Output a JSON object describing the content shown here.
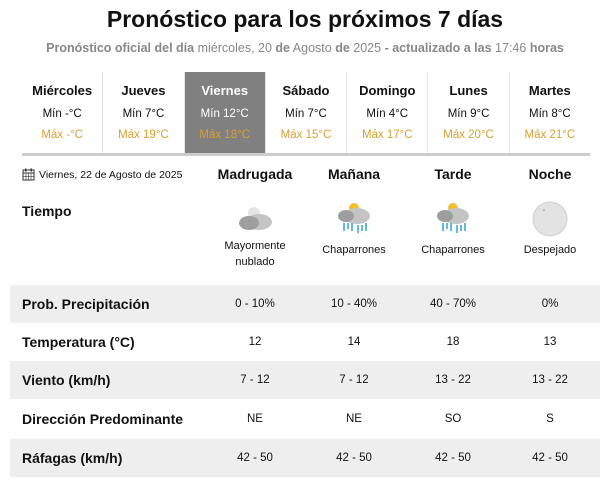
{
  "header": {
    "title": "Pronóstico para los próximos 7 días",
    "subtitle": {
      "p1": "Pronóstico oficial del día",
      "date": "miércoles, 20",
      "p2": "de",
      "month": "Agosto",
      "p3": "de",
      "year": "2025",
      "p4": "- actualizado a las",
      "time": "17:46",
      "p5": "horas"
    }
  },
  "days": [
    {
      "name": "Miércoles",
      "min": "Mín -°C",
      "max": "Máx -°C"
    },
    {
      "name": "Jueves",
      "min": "Mín 7°C",
      "max": "Máx 19°C"
    },
    {
      "name": "Viernes",
      "min": "Mín 12°C",
      "max": "Máx 18°C",
      "selected": true
    },
    {
      "name": "Sábado",
      "min": "Mín 7°C",
      "max": "Máx 15°C"
    },
    {
      "name": "Domingo",
      "min": "Mín 4°C",
      "max": "Máx 17°C"
    },
    {
      "name": "Lunes",
      "min": "Mín 9°C",
      "max": "Máx 20°C"
    },
    {
      "name": "Martes",
      "min": "Mín 8°C",
      "max": "Máx 21°C"
    }
  ],
  "colors": {
    "selected_tab": "#808080",
    "max_temp": "#d9a030",
    "row_alt": "#eeeeee"
  },
  "detail": {
    "date": "Viernes, 22 de Agosto de 2025",
    "periods": [
      "Madrugada",
      "Mañana",
      "Tarde",
      "Noche"
    ],
    "tiempo_label": "Tiempo",
    "weather": [
      {
        "icon": "mostly-cloudy-night-icon",
        "text": "Mayormente nublado"
      },
      {
        "icon": "showers-icon",
        "text": "Chaparrones"
      },
      {
        "icon": "showers-icon",
        "text": "Chaparrones"
      },
      {
        "icon": "clear-night-icon",
        "text": "Despejado"
      }
    ],
    "rows": [
      {
        "label": "Prob. Precipitación",
        "values": [
          "0 - 10%",
          "10 - 40%",
          "40 - 70%",
          "0%"
        ]
      },
      {
        "label": "Temperatura (°C)",
        "values": [
          "12",
          "14",
          "18",
          "13"
        ]
      },
      {
        "label": "Viento (km/h)",
        "values": [
          "7 - 12",
          "7 - 12",
          "13 - 22",
          "13 - 22"
        ]
      },
      {
        "label": "Dirección Predominante",
        "values": [
          "NE",
          "NE",
          "SO",
          "S"
        ]
      },
      {
        "label": "Ráfagas (km/h)",
        "values": [
          "42 - 50",
          "42 - 50",
          "42 - 50",
          "42 - 50"
        ]
      }
    ]
  }
}
